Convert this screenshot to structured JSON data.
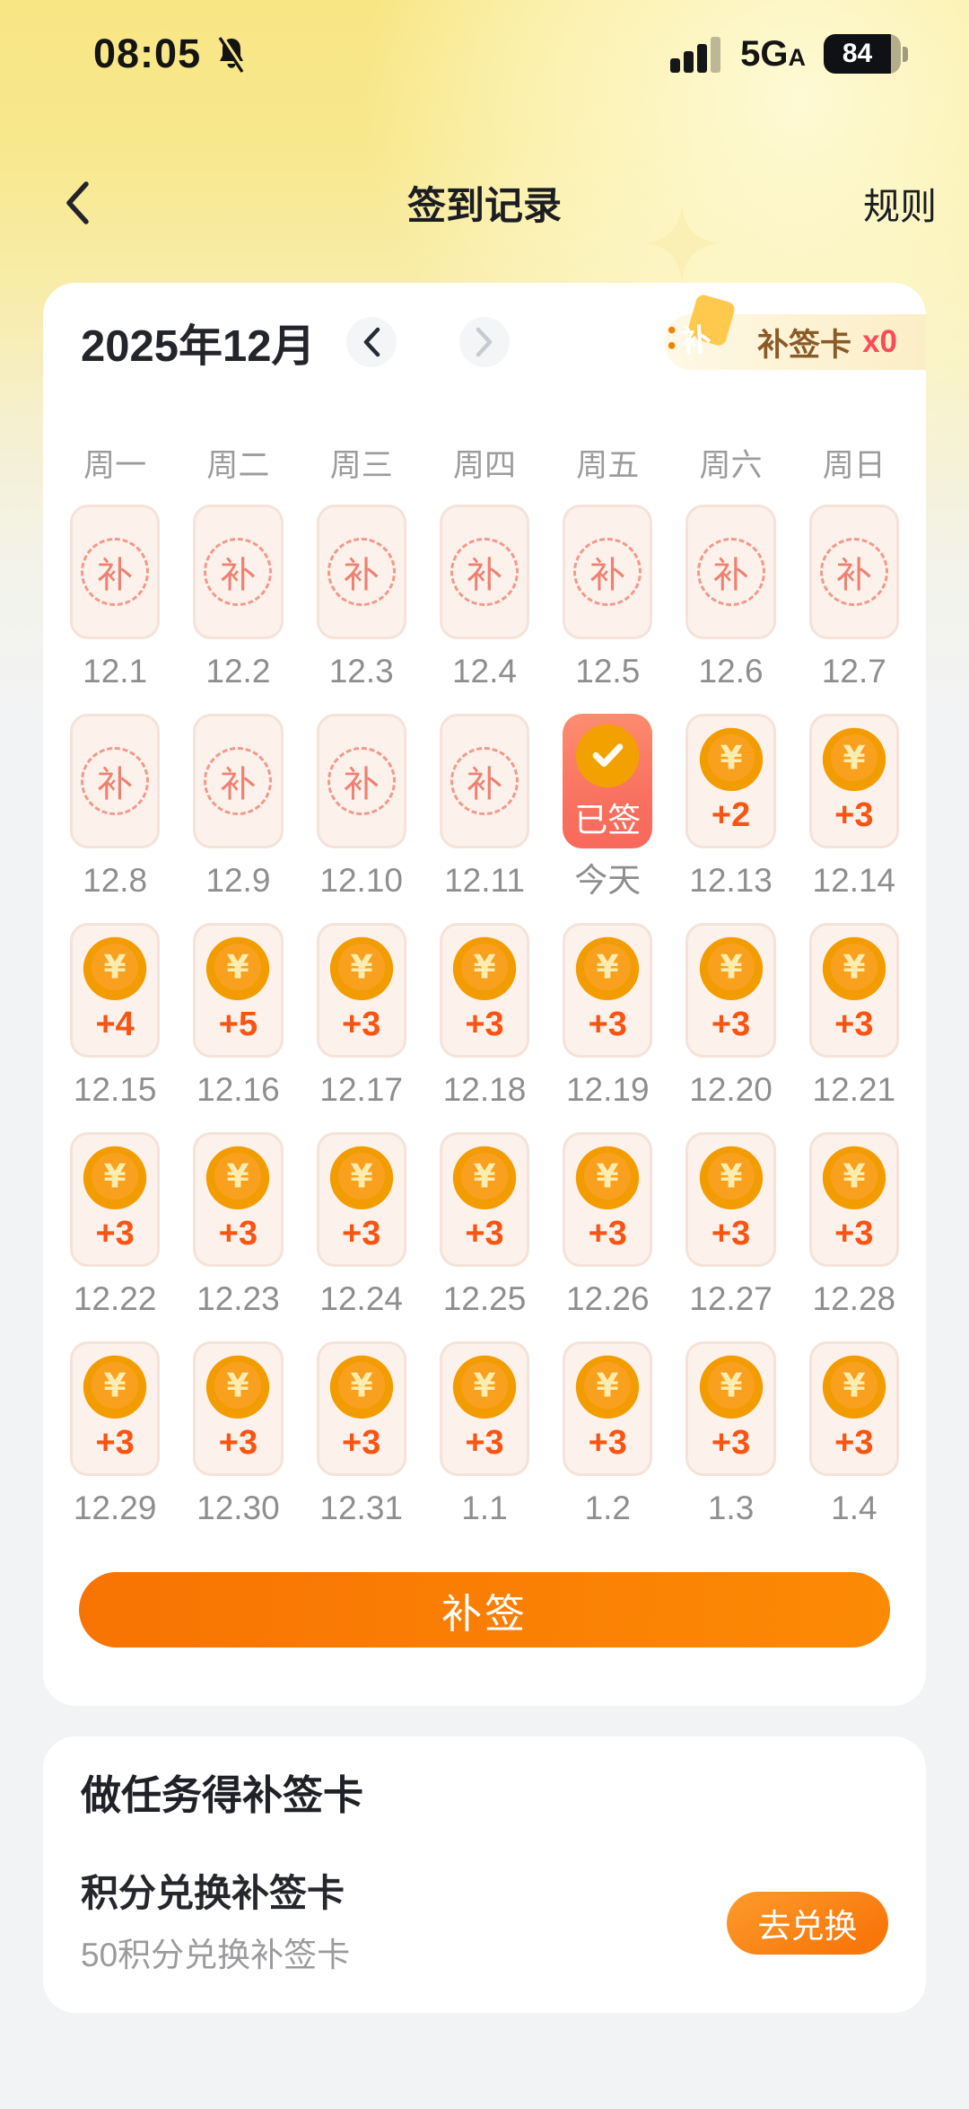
{
  "status_bar": {
    "time": "08:05",
    "network": "5G",
    "network_sub": "A",
    "battery": "84"
  },
  "nav": {
    "title": "签到记录",
    "rules_label": "规则"
  },
  "calendar": {
    "month_label": "2025年12月",
    "ticket_label": "补签卡",
    "ticket_count": "x0",
    "ticket_char": "补",
    "makeup_char": "补",
    "coin_symbol": "¥",
    "signed_label": "已签",
    "resign_label": "补签",
    "weekdays": [
      "周一",
      "周二",
      "周三",
      "周四",
      "周五",
      "周六",
      "周日"
    ],
    "days": [
      {
        "date": "12.1",
        "type": "makeup"
      },
      {
        "date": "12.2",
        "type": "makeup"
      },
      {
        "date": "12.3",
        "type": "makeup"
      },
      {
        "date": "12.4",
        "type": "makeup"
      },
      {
        "date": "12.5",
        "type": "makeup"
      },
      {
        "date": "12.6",
        "type": "makeup"
      },
      {
        "date": "12.7",
        "type": "makeup"
      },
      {
        "date": "12.8",
        "type": "makeup"
      },
      {
        "date": "12.9",
        "type": "makeup"
      },
      {
        "date": "12.10",
        "type": "makeup"
      },
      {
        "date": "12.11",
        "type": "makeup"
      },
      {
        "date": "今天",
        "type": "today",
        "label": "已签"
      },
      {
        "date": "12.13",
        "type": "reward",
        "value": "+2"
      },
      {
        "date": "12.14",
        "type": "reward",
        "value": "+3"
      },
      {
        "date": "12.15",
        "type": "reward",
        "value": "+4"
      },
      {
        "date": "12.16",
        "type": "reward",
        "value": "+5"
      },
      {
        "date": "12.17",
        "type": "reward",
        "value": "+3"
      },
      {
        "date": "12.18",
        "type": "reward",
        "value": "+3"
      },
      {
        "date": "12.19",
        "type": "reward",
        "value": "+3"
      },
      {
        "date": "12.20",
        "type": "reward",
        "value": "+3"
      },
      {
        "date": "12.21",
        "type": "reward",
        "value": "+3"
      },
      {
        "date": "12.22",
        "type": "reward",
        "value": "+3"
      },
      {
        "date": "12.23",
        "type": "reward",
        "value": "+3"
      },
      {
        "date": "12.24",
        "type": "reward",
        "value": "+3"
      },
      {
        "date": "12.25",
        "type": "reward",
        "value": "+3"
      },
      {
        "date": "12.26",
        "type": "reward",
        "value": "+3"
      },
      {
        "date": "12.27",
        "type": "reward",
        "value": "+3"
      },
      {
        "date": "12.28",
        "type": "reward",
        "value": "+3"
      },
      {
        "date": "12.29",
        "type": "reward",
        "value": "+3"
      },
      {
        "date": "12.30",
        "type": "reward",
        "value": "+3"
      },
      {
        "date": "12.31",
        "type": "reward",
        "value": "+3"
      },
      {
        "date": "1.1",
        "type": "reward",
        "value": "+3"
      },
      {
        "date": "1.2",
        "type": "reward",
        "value": "+3"
      },
      {
        "date": "1.3",
        "type": "reward",
        "value": "+3"
      },
      {
        "date": "1.4",
        "type": "reward",
        "value": "+3"
      }
    ]
  },
  "tasks": {
    "title": "做任务得补签卡",
    "item_title": "积分兑换补签卡",
    "item_desc": "50积分兑换补签卡",
    "action_label": "去兑换"
  },
  "colors": {
    "accent_orange": "#FB7E03",
    "today_red": "#F9705F",
    "coin_gold": "#FFC43A",
    "reward_text": "#F95412",
    "badge_count_red": "#FA4B56",
    "top_background_yellow": "#F8E685"
  }
}
